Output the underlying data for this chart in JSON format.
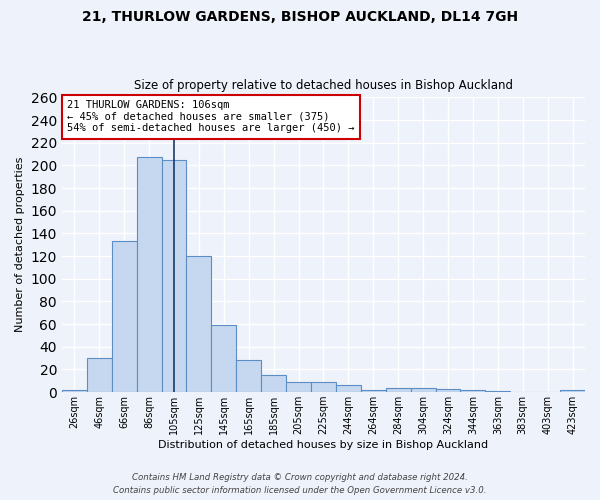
{
  "title1": "21, THURLOW GARDENS, BISHOP AUCKLAND, DL14 7GH",
  "title2": "Size of property relative to detached houses in Bishop Auckland",
  "xlabel": "Distribution of detached houses by size in Bishop Auckland",
  "ylabel": "Number of detached properties",
  "footer1": "Contains HM Land Registry data © Crown copyright and database right 2024.",
  "footer2": "Contains public sector information licensed under the Open Government Licence v3.0.",
  "bar_labels": [
    "26sqm",
    "46sqm",
    "66sqm",
    "86sqm",
    "105sqm",
    "125sqm",
    "145sqm",
    "165sqm",
    "185sqm",
    "205sqm",
    "225sqm",
    "244sqm",
    "264sqm",
    "284sqm",
    "304sqm",
    "324sqm",
    "344sqm",
    "363sqm",
    "383sqm",
    "403sqm",
    "423sqm"
  ],
  "bar_values": [
    2,
    30,
    133,
    207,
    205,
    120,
    59,
    28,
    15,
    9,
    9,
    6,
    2,
    4,
    4,
    3,
    2,
    1,
    0,
    0,
    2
  ],
  "bar_color": "#c5d8f0",
  "bar_edge_color": "#5b8ec7",
  "bg_color": "#eef2fb",
  "grid_color": "#ffffff",
  "vline_x": 4,
  "vline_color": "#1a3a6b",
  "annotation_line1": "21 THURLOW GARDENS: 106sqm",
  "annotation_line2": "← 45% of detached houses are smaller (375)",
  "annotation_line3": "54% of semi-detached houses are larger (450) →",
  "annotation_box_color": "#ffffff",
  "annotation_border_color": "#cc0000",
  "ylim": [
    0,
    260
  ],
  "yticks": [
    0,
    20,
    40,
    60,
    80,
    100,
    120,
    140,
    160,
    180,
    200,
    220,
    240,
    260
  ]
}
